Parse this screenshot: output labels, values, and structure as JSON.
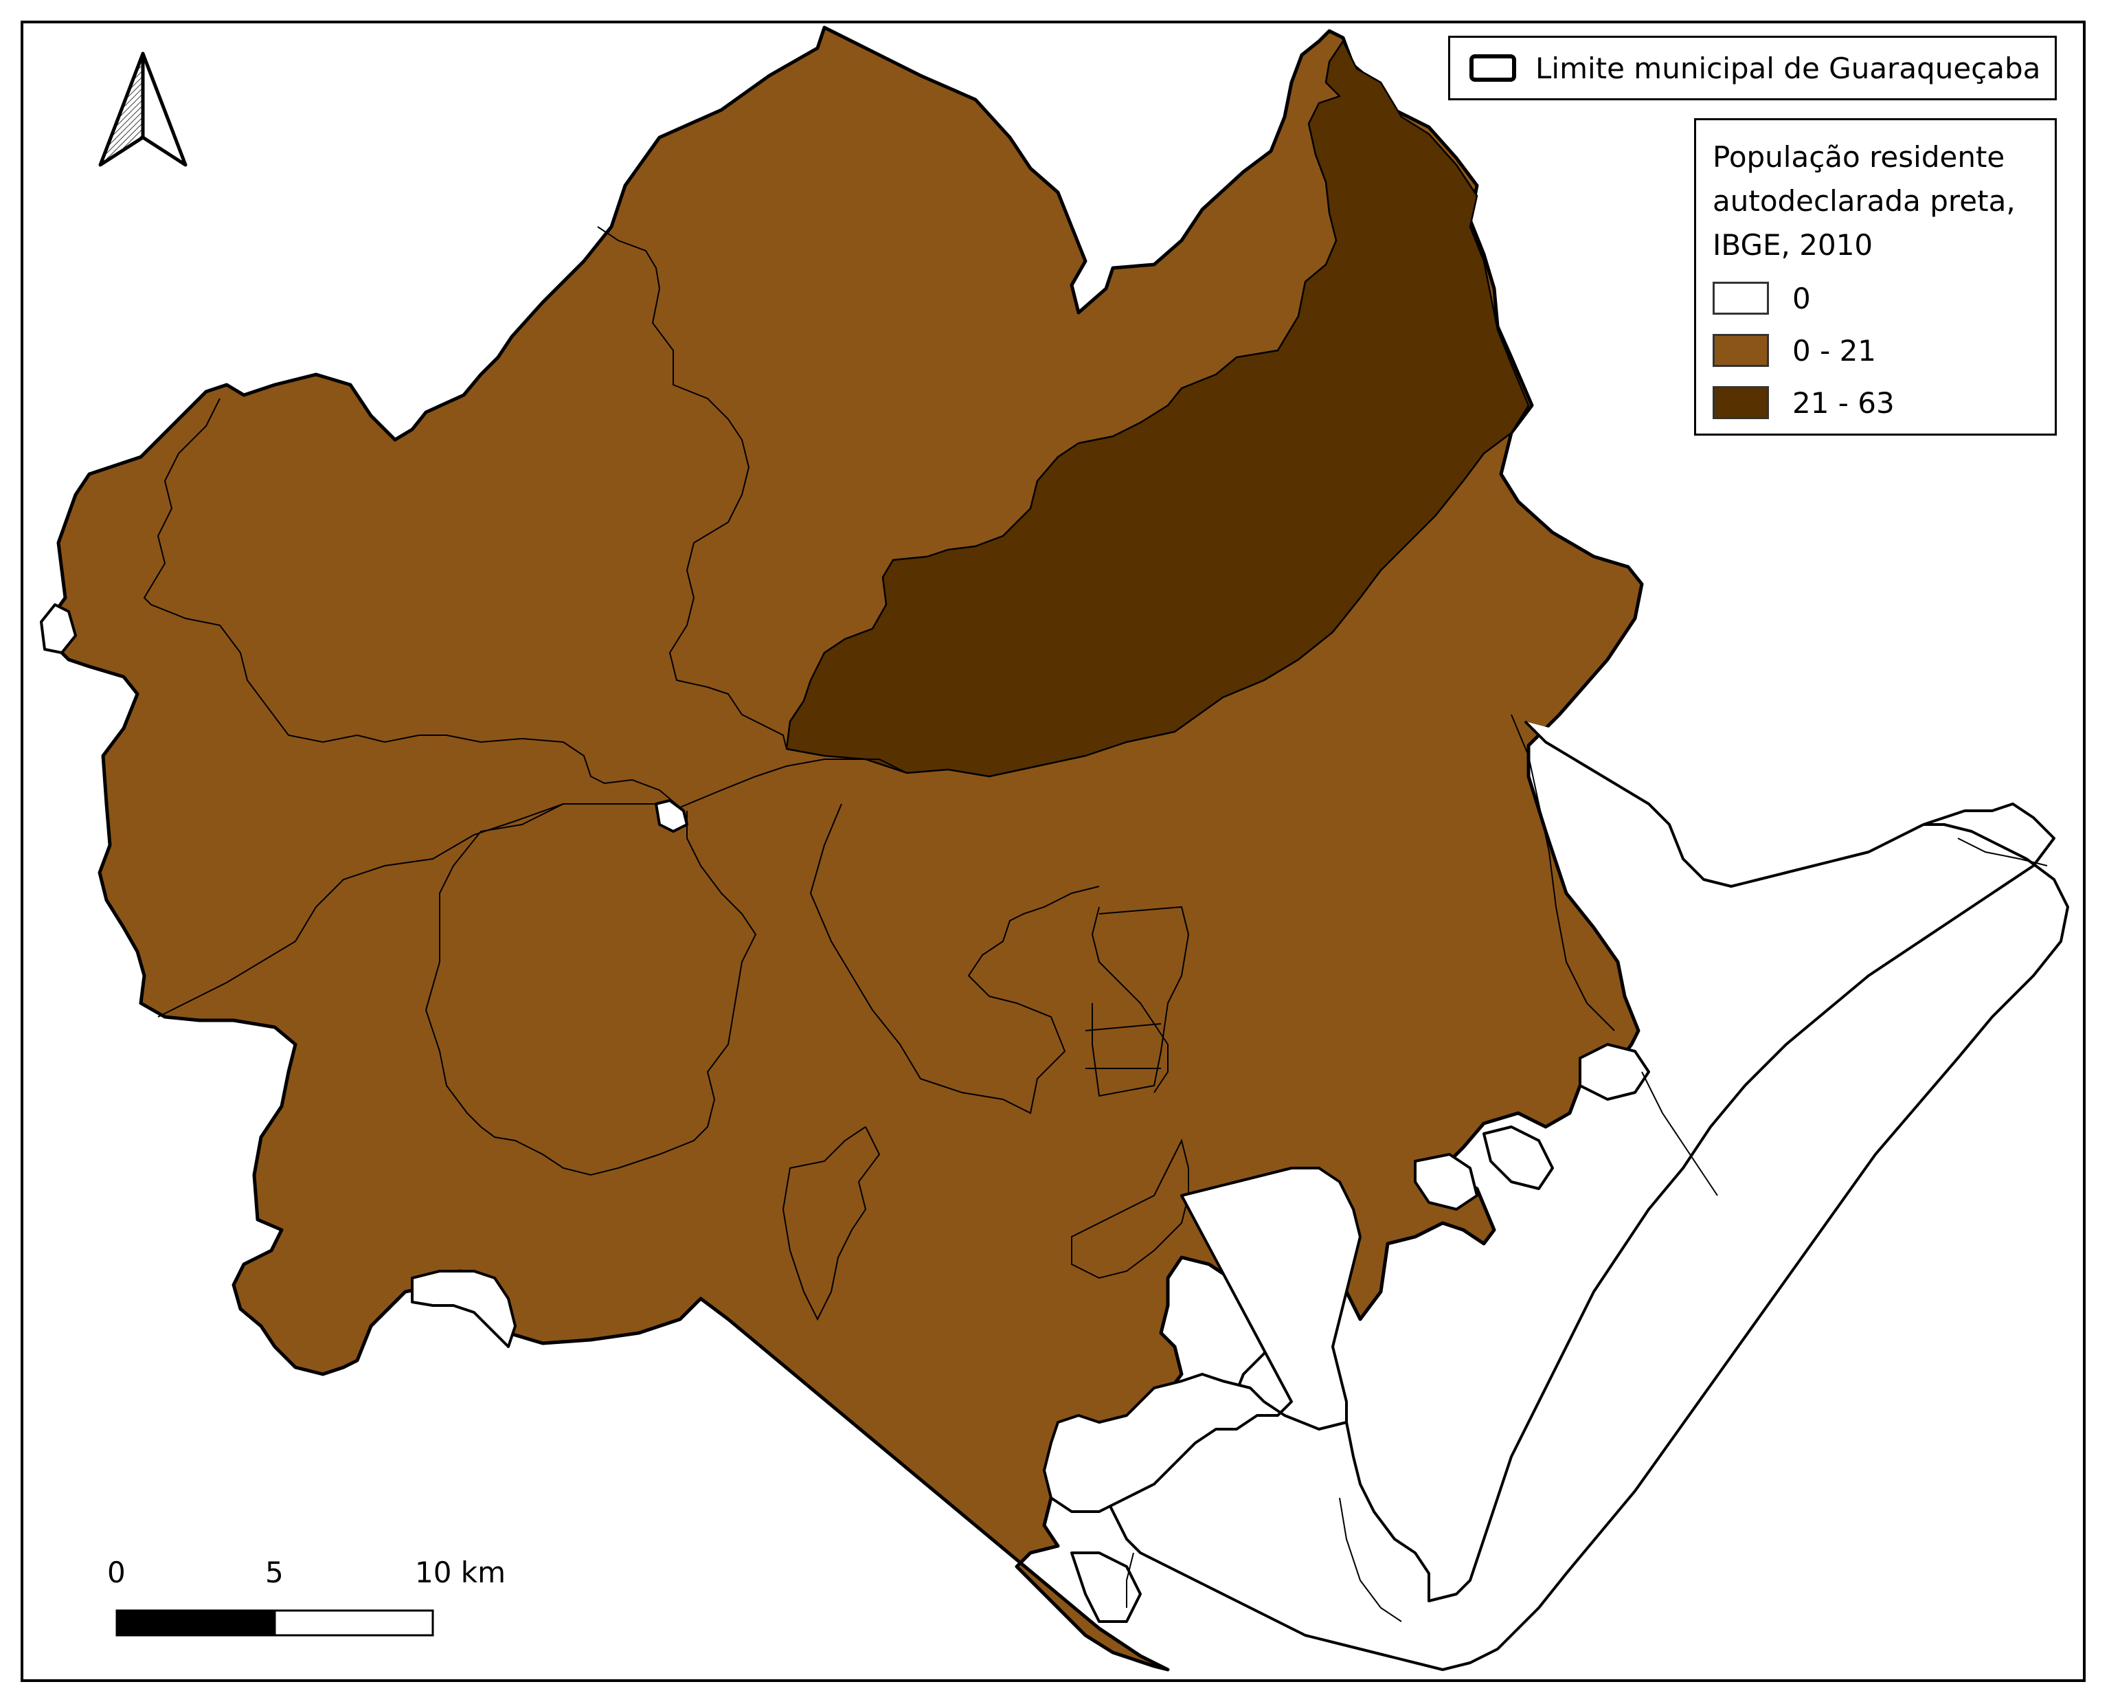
{
  "legend_boundary": {
    "label": "Limite municipal de Guaraqueçaba"
  },
  "legend_classes": {
    "title_lines": [
      "População residente",
      "autodeclarada preta,",
      "IBGE, 2010"
    ],
    "items": [
      {
        "label": "0",
        "color": "#ffffff"
      },
      {
        "label": "0 - 21",
        "color": "#8b5518"
      },
      {
        "label": "21 - 63",
        "color": "#573100"
      }
    ]
  },
  "scale_bar": {
    "labels": [
      "0",
      "5",
      "10 km"
    ]
  },
  "north_arrow": {
    "icon": "north-arrow-icon"
  },
  "colors": {
    "land": "#8b5518",
    "dark": "#573100",
    "water": "#ffffff",
    "stroke": "#000000"
  }
}
